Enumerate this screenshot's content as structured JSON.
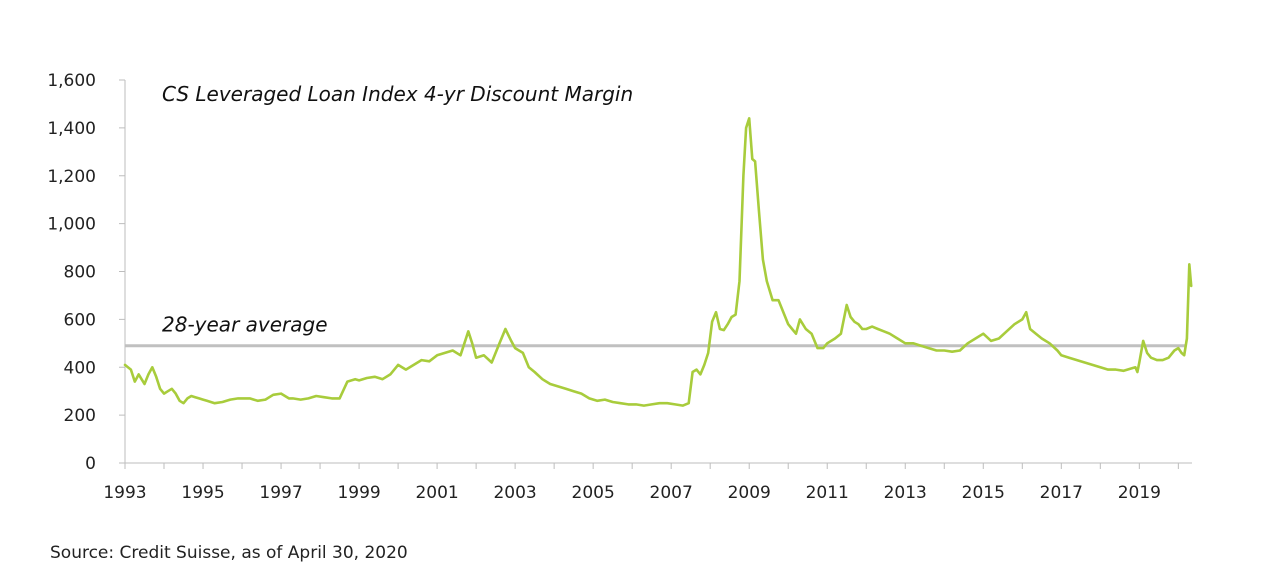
{
  "chart_data": {
    "type": "line",
    "title": "CS Leveraged Loan Index 4-yr Discount Margin",
    "ylim": [
      0,
      1600
    ],
    "yticks": [
      0,
      200,
      400,
      600,
      800,
      1000,
      1200,
      1400,
      1600
    ],
    "ytick_labels": [
      "0",
      "200",
      "400",
      "600",
      "800",
      "1,000",
      "1,200",
      "1,400",
      "1,600"
    ],
    "xlim": [
      1993,
      2020.35
    ],
    "xticks": [
      1993,
      1995,
      1997,
      1999,
      2001,
      2003,
      2005,
      2007,
      2009,
      2011,
      2013,
      2015,
      2017,
      2019
    ],
    "xtick_labels": [
      "1993",
      "1995",
      "1997",
      "1999",
      "2001",
      "2003",
      "2005",
      "2007",
      "2009",
      "2011",
      "2013",
      "2015",
      "2017",
      "2019"
    ],
    "average": {
      "label": "28-year average",
      "value": 490,
      "color": "#c0c0c0"
    },
    "series": [
      {
        "color": "#a8cc3c",
        "x": [
          1993.0,
          1993.15,
          1993.25,
          1993.35,
          1993.5,
          1993.6,
          1993.7,
          1993.8,
          1993.9,
          1994.0,
          1994.1,
          1994.2,
          1994.3,
          1994.4,
          1994.5,
          1994.6,
          1994.7,
          1994.8,
          1994.9,
          1995.0,
          1995.1,
          1995.2,
          1995.3,
          1995.5,
          1995.7,
          1995.9,
          1996.0,
          1996.2,
          1996.4,
          1996.6,
          1996.8,
          1997.0,
          1997.2,
          1997.3,
          1997.5,
          1997.7,
          1997.9,
          1998.1,
          1998.3,
          1998.5,
          1998.7,
          1998.9,
          1999.0,
          1999.2,
          1999.4,
          1999.6,
          1999.8,
          2000.0,
          2000.2,
          2000.4,
          2000.6,
          2000.8,
          2001.0,
          2001.2,
          2001.4,
          2001.6,
          2001.8,
          2001.9,
          2002.0,
          2002.2,
          2002.4,
          2002.6,
          2002.75,
          2002.9,
          2003.0,
          2003.2,
          2003.35,
          2003.5,
          2003.7,
          2003.9,
          2004.1,
          2004.3,
          2004.5,
          2004.7,
          2004.9,
          2005.1,
          2005.3,
          2005.5,
          2005.7,
          2005.9,
          2006.1,
          2006.3,
          2006.5,
          2006.7,
          2006.9,
          2007.1,
          2007.3,
          2007.45,
          2007.55,
          2007.65,
          2007.75,
          2007.85,
          2007.95,
          2008.05,
          2008.15,
          2008.25,
          2008.35,
          2008.45,
          2008.55,
          2008.65,
          2008.75,
          2008.85,
          2008.92,
          2009.0,
          2009.08,
          2009.15,
          2009.25,
          2009.35,
          2009.45,
          2009.6,
          2009.75,
          2009.9,
          2010.0,
          2010.1,
          2010.2,
          2010.3,
          2010.45,
          2010.6,
          2010.75,
          2010.9,
          2011.0,
          2011.2,
          2011.35,
          2011.5,
          2011.6,
          2011.7,
          2011.8,
          2011.9,
          2012.0,
          2012.15,
          2012.3,
          2012.45,
          2012.6,
          2012.8,
          2013.0,
          2013.2,
          2013.4,
          2013.6,
          2013.8,
          2014.0,
          2014.2,
          2014.4,
          2014.6,
          2014.8,
          2015.0,
          2015.2,
          2015.4,
          2015.6,
          2015.8,
          2016.0,
          2016.1,
          2016.2,
          2016.35,
          2016.5,
          2016.7,
          2016.9,
          2017.0,
          2017.2,
          2017.4,
          2017.6,
          2017.8,
          2018.0,
          2018.2,
          2018.4,
          2018.6,
          2018.8,
          2018.9,
          2018.95,
          2019.0,
          2019.1,
          2019.2,
          2019.3,
          2019.45,
          2019.6,
          2019.75,
          2019.9,
          2020.0,
          2020.08,
          2020.15,
          2020.22,
          2020.28,
          2020.33
        ],
        "y": [
          410,
          390,
          340,
          370,
          330,
          370,
          400,
          360,
          310,
          290,
          300,
          310,
          290,
          260,
          250,
          270,
          280,
          275,
          270,
          265,
          260,
          255,
          250,
          255,
          265,
          270,
          270,
          270,
          260,
          265,
          285,
          290,
          270,
          270,
          265,
          270,
          280,
          275,
          270,
          270,
          340,
          350,
          345,
          355,
          360,
          350,
          370,
          410,
          390,
          410,
          430,
          425,
          450,
          460,
          470,
          450,
          550,
          500,
          440,
          450,
          420,
          500,
          560,
          510,
          480,
          460,
          400,
          380,
          350,
          330,
          320,
          310,
          300,
          290,
          270,
          260,
          265,
          255,
          250,
          245,
          245,
          240,
          245,
          250,
          250,
          245,
          240,
          250,
          380,
          390,
          370,
          410,
          460,
          590,
          630,
          560,
          555,
          580,
          610,
          620,
          760,
          1200,
          1400,
          1440,
          1270,
          1260,
          1050,
          850,
          760,
          680,
          680,
          620,
          580,
          560,
          540,
          600,
          560,
          540,
          480,
          480,
          500,
          520,
          540,
          660,
          610,
          590,
          580,
          560,
          560,
          570,
          560,
          550,
          540,
          520,
          500,
          500,
          490,
          480,
          470,
          470,
          465,
          470,
          500,
          520,
          540,
          510,
          520,
          550,
          580,
          600,
          630,
          560,
          540,
          520,
          500,
          470,
          450,
          440,
          430,
          420,
          410,
          400,
          390,
          390,
          385,
          395,
          400,
          380,
          420,
          510,
          460,
          440,
          430,
          430,
          440,
          470,
          480,
          460,
          450,
          520,
          830,
          740
        ]
      }
    ]
  },
  "source_note": "Source: Credit Suisse, as of April 30, 2020"
}
